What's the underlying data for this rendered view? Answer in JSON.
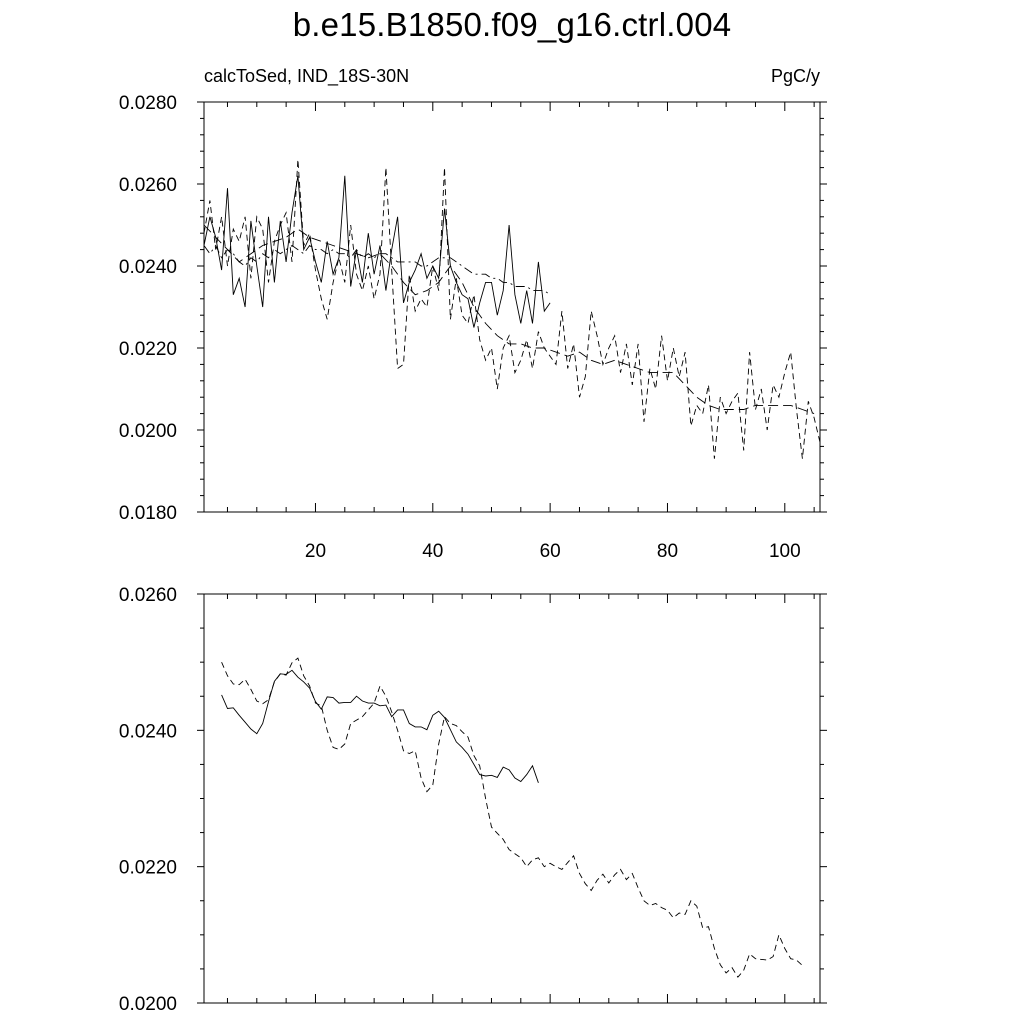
{
  "title": "b.e15.B1850.f09_g16.ctrl.004",
  "subtitle_left": "calcToSed, IND_18S-30N",
  "subtitle_right": "PgC/y",
  "chart_data": [
    {
      "type": "line",
      "xlim": [
        1,
        106
      ],
      "ylim": [
        0.018,
        0.028
      ],
      "x_ticks": [
        20,
        40,
        60,
        80,
        100
      ],
      "x_tick_labels": [
        "20",
        "40",
        "60",
        "80",
        "100"
      ],
      "y_ticks": [
        0.018,
        0.02,
        0.022,
        0.024,
        0.026,
        0.028
      ],
      "y_tick_labels": [
        "0.0180",
        "0.0200",
        "0.0220",
        "0.0240",
        "0.0260",
        "0.0280"
      ],
      "series": [
        {
          "style": "solid",
          "x": [
            1,
            2,
            3,
            4,
            5,
            6,
            7,
            8,
            9,
            10,
            11,
            12,
            13,
            14,
            15,
            16,
            17,
            18,
            19,
            20,
            21,
            22,
            23,
            24,
            25,
            26,
            27,
            28,
            29,
            30,
            31,
            32,
            33,
            34,
            35,
            36,
            37,
            38,
            39,
            40,
            41,
            42,
            43,
            44,
            45,
            46,
            47,
            48,
            49,
            50,
            51,
            52,
            53,
            54,
            55,
            56,
            57,
            58,
            59,
            60
          ],
          "y": [
            0.0245,
            0.0252,
            0.0247,
            0.0239,
            0.0259,
            0.0233,
            0.0237,
            0.023,
            0.0251,
            0.024,
            0.023,
            0.0252,
            0.0236,
            0.0251,
            0.0241,
            0.0253,
            0.0262,
            0.0244,
            0.0247,
            0.0241,
            0.0236,
            0.0246,
            0.0238,
            0.0242,
            0.0262,
            0.0235,
            0.0244,
            0.0236,
            0.0248,
            0.0238,
            0.0245,
            0.0234,
            0.0244,
            0.0252,
            0.0231,
            0.0236,
            0.0239,
            0.0243,
            0.0237,
            0.024,
            0.0237,
            0.0254,
            0.024,
            0.0236,
            0.0233,
            0.0232,
            0.0225,
            0.0231,
            0.0236,
            0.0236,
            0.0228,
            0.0234,
            0.025,
            0.0233,
            0.0226,
            0.0234,
            0.0226,
            0.0241,
            0.0229,
            0.0231
          ]
        },
        {
          "style": "dashed",
          "x": [
            1,
            2,
            3,
            4,
            5,
            6,
            7,
            8,
            9,
            10,
            11,
            12,
            13,
            14,
            15,
            16,
            17,
            18,
            19,
            20,
            21,
            22,
            23,
            24,
            25,
            26,
            27,
            28,
            29,
            30,
            31,
            32,
            33,
            34,
            35,
            36,
            37,
            38,
            39,
            40,
            41,
            42,
            43,
            44,
            45,
            46,
            47,
            48,
            49,
            50,
            51,
            52,
            53,
            54,
            55,
            56,
            57,
            58,
            59,
            60,
            61,
            62,
            63,
            64,
            65,
            66,
            67,
            68,
            69,
            70,
            71,
            72,
            73,
            74,
            75,
            76,
            77,
            78,
            79,
            80,
            81,
            82,
            83,
            84,
            85,
            86,
            87,
            88,
            89,
            90,
            91,
            92,
            93,
            94,
            95,
            96,
            97,
            98,
            99,
            100,
            101,
            102,
            103,
            104,
            105,
            106
          ],
          "y": [
            0.0248,
            0.0256,
            0.0244,
            0.0252,
            0.024,
            0.0249,
            0.0246,
            0.0252,
            0.0237,
            0.0252,
            0.0249,
            0.0236,
            0.0246,
            0.025,
            0.0253,
            0.0241,
            0.0266,
            0.0245,
            0.0248,
            0.0239,
            0.0232,
            0.0227,
            0.0236,
            0.0242,
            0.0236,
            0.025,
            0.0238,
            0.0234,
            0.024,
            0.0232,
            0.0238,
            0.0264,
            0.0239,
            0.0215,
            0.0216,
            0.0238,
            0.0229,
            0.0232,
            0.023,
            0.024,
            0.0234,
            0.0264,
            0.0227,
            0.0237,
            0.0228,
            0.0226,
            0.0233,
            0.0222,
            0.0217,
            0.022,
            0.021,
            0.022,
            0.0223,
            0.0214,
            0.0217,
            0.0222,
            0.0215,
            0.0224,
            0.022,
            0.0218,
            0.0216,
            0.0229,
            0.0215,
            0.0221,
            0.0208,
            0.0213,
            0.0229,
            0.0223,
            0.0216,
            0.022,
            0.0223,
            0.0214,
            0.0221,
            0.0211,
            0.0221,
            0.0202,
            0.0215,
            0.021,
            0.0223,
            0.0212,
            0.022,
            0.0213,
            0.0219,
            0.0201,
            0.0206,
            0.0204,
            0.0211,
            0.0193,
            0.0208,
            0.0204,
            0.0207,
            0.0209,
            0.0195,
            0.0219,
            0.0205,
            0.021,
            0.02,
            0.0211,
            0.0208,
            0.0214,
            0.0219,
            0.0205,
            0.0193,
            0.0207,
            0.0203,
            0.0197
          ]
        },
        {
          "style": "dash-dot",
          "x": [
            1,
            2,
            3,
            4,
            5,
            6,
            7,
            8,
            9,
            10,
            11,
            12,
            13,
            14,
            15,
            16,
            17,
            18,
            19,
            20,
            21,
            22,
            23,
            24,
            25,
            26,
            27,
            28,
            29,
            30,
            31,
            32,
            33,
            34,
            35,
            36,
            37,
            38,
            39,
            40,
            41,
            42,
            43,
            44,
            45,
            46,
            47,
            48,
            49,
            50,
            51,
            52,
            53,
            54,
            55,
            56,
            57,
            58,
            59,
            60
          ],
          "y": [
            0.0245,
            0.0243,
            0.0245,
            0.0242,
            0.0244,
            0.0243,
            0.0241,
            0.024,
            0.0242,
            0.0241,
            0.0243,
            0.0242,
            0.0244,
            0.0243,
            0.0244,
            0.0245,
            0.0244,
            0.0243,
            0.0245,
            0.0244,
            0.0244,
            0.0243,
            0.0244,
            0.0243,
            0.0243,
            0.0242,
            0.0244,
            0.0242,
            0.0243,
            0.0242,
            0.0243,
            0.0243,
            0.0242,
            0.0241,
            0.0241,
            0.0241,
            0.0241,
            0.024,
            0.024,
            0.0241,
            0.0242,
            0.0242,
            0.0242,
            0.0241,
            0.024,
            0.0239,
            0.0238,
            0.0238,
            0.0238,
            0.0237,
            0.0237,
            0.0236,
            0.0236,
            0.0235,
            0.0235,
            0.0235,
            0.0234,
            0.0234,
            0.0234,
            0.0233
          ]
        },
        {
          "style": "long-dash",
          "x": [
            1,
            3,
            5,
            7,
            9,
            11,
            13,
            15,
            17,
            19,
            21,
            23,
            25,
            27,
            29,
            31,
            33,
            35,
            37,
            39,
            41,
            43,
            45,
            47,
            49,
            51,
            53,
            55,
            57,
            59,
            61,
            63,
            65,
            67,
            69,
            71,
            73,
            75,
            77,
            79,
            81,
            83,
            85,
            87,
            89,
            91,
            93,
            95,
            97,
            99,
            101,
            103,
            105
          ],
          "y": [
            0.025,
            0.0247,
            0.0244,
            0.0241,
            0.0243,
            0.0245,
            0.0246,
            0.0247,
            0.0249,
            0.0247,
            0.0246,
            0.0245,
            0.0244,
            0.0243,
            0.0242,
            0.0243,
            0.024,
            0.0236,
            0.0233,
            0.0234,
            0.0236,
            0.024,
            0.0236,
            0.023,
            0.0226,
            0.0223,
            0.0221,
            0.0221,
            0.022,
            0.022,
            0.0219,
            0.0218,
            0.0219,
            0.0217,
            0.0216,
            0.0217,
            0.0216,
            0.0215,
            0.0214,
            0.0214,
            0.0214,
            0.0211,
            0.0208,
            0.0206,
            0.0205,
            0.0205,
            0.0205,
            0.0206,
            0.0206,
            0.0206,
            0.0206,
            0.0205,
            0.0204
          ]
        }
      ]
    },
    {
      "type": "line",
      "xlim": [
        1,
        106
      ],
      "ylim": [
        0.02,
        0.026
      ],
      "x_ticks": [
        20,
        40,
        60,
        80,
        100
      ],
      "y_ticks": [
        0.02,
        0.022,
        0.024,
        0.026
      ],
      "y_tick_labels": [
        "0.0200",
        "0.0220",
        "0.0240",
        "0.0260"
      ],
      "series": [
        {
          "style": "solid",
          "x": [
            4,
            5,
            6,
            7,
            8,
            9,
            10,
            11,
            12,
            13,
            14,
            15,
            16,
            17,
            18,
            19,
            20,
            21,
            22,
            23,
            24,
            25,
            26,
            27,
            28,
            29,
            30,
            31,
            32,
            33,
            34,
            35,
            36,
            37,
            38,
            39,
            40,
            41,
            42,
            43,
            44,
            45,
            46,
            47,
            48,
            49,
            50,
            51,
            52,
            53,
            54,
            55,
            56,
            57,
            58
          ],
          "y": [
            0.02452,
            0.02432,
            0.02433,
            0.02422,
            0.02412,
            0.02402,
            0.02395,
            0.0241,
            0.02442,
            0.02472,
            0.02483,
            0.02482,
            0.02488,
            0.02478,
            0.02471,
            0.02462,
            0.02442,
            0.02431,
            0.02449,
            0.02448,
            0.0244,
            0.02441,
            0.02441,
            0.0245,
            0.02443,
            0.0244,
            0.0244,
            0.02436,
            0.02437,
            0.0242,
            0.0243,
            0.0243,
            0.0241,
            0.02405,
            0.02405,
            0.02401,
            0.02422,
            0.02428,
            0.02419,
            0.02401,
            0.02383,
            0.02375,
            0.02365,
            0.0235,
            0.02335,
            0.02333,
            0.02334,
            0.02331,
            0.02346,
            0.02342,
            0.0233,
            0.02325,
            0.02335,
            0.02348,
            0.02323
          ]
        },
        {
          "style": "dashed",
          "x": [
            4,
            5,
            6,
            7,
            8,
            9,
            10,
            11,
            12,
            13,
            14,
            15,
            16,
            17,
            18,
            19,
            20,
            21,
            22,
            23,
            24,
            25,
            26,
            27,
            28,
            29,
            30,
            31,
            32,
            33,
            34,
            35,
            36,
            37,
            38,
            39,
            40,
            41,
            42,
            43,
            44,
            45,
            46,
            47,
            48,
            49,
            50,
            51,
            52,
            53,
            54,
            55,
            56,
            57,
            58,
            59,
            60,
            61,
            62,
            63,
            64,
            65,
            66,
            67,
            68,
            69,
            70,
            71,
            72,
            73,
            74,
            75,
            76,
            77,
            78,
            79,
            80,
            81,
            82,
            83,
            84,
            85,
            86,
            87,
            88,
            89,
            90,
            91,
            92,
            93,
            94,
            95,
            96,
            97,
            98,
            99,
            100,
            101,
            102,
            103
          ],
          "y": [
            0.025,
            0.0248,
            0.02468,
            0.02467,
            0.02475,
            0.0246,
            0.02443,
            0.02439,
            0.02445,
            0.02471,
            0.02483,
            0.02481,
            0.02499,
            0.02506,
            0.0248,
            0.02465,
            0.0244,
            0.02436,
            0.024,
            0.02375,
            0.02372,
            0.0238,
            0.0241,
            0.02415,
            0.0242,
            0.0243,
            0.0244,
            0.02465,
            0.0245,
            0.02427,
            0.024,
            0.0237,
            0.02366,
            0.0237,
            0.0233,
            0.0231,
            0.0232,
            0.0238,
            0.0242,
            0.0241,
            0.02407,
            0.02398,
            0.0239,
            0.02363,
            0.02348,
            0.023,
            0.02258,
            0.02249,
            0.0224,
            0.02225,
            0.02219,
            0.02213,
            0.022,
            0.0221,
            0.02213,
            0.022,
            0.02205,
            0.022,
            0.02196,
            0.02206,
            0.02216,
            0.0219,
            0.02175,
            0.02165,
            0.0218,
            0.02189,
            0.02176,
            0.02188,
            0.02196,
            0.02181,
            0.0219,
            0.02169,
            0.0215,
            0.02143,
            0.02146,
            0.0214,
            0.02136,
            0.02125,
            0.02132,
            0.0213,
            0.0215,
            0.02142,
            0.0211,
            0.02112,
            0.0208,
            0.02056,
            0.02044,
            0.02052,
            0.02038,
            0.02048,
            0.02072,
            0.02065,
            0.02064,
            0.02063,
            0.02068,
            0.021,
            0.0208,
            0.02065,
            0.02063,
            0.02055
          ]
        }
      ]
    }
  ]
}
